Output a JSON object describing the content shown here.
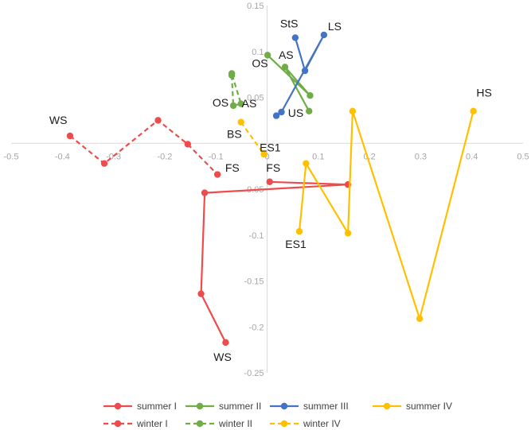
{
  "chart_data": {
    "type": "scatter",
    "title": "",
    "xlabel": "",
    "ylabel": "",
    "xlim": [
      -0.5,
      0.5
    ],
    "ylim": [
      -0.25,
      0.15
    ],
    "x_ticks": [
      -0.5,
      -0.4,
      -0.3,
      -0.2,
      -0.1,
      0,
      0.1,
      0.2,
      0.3,
      0.4,
      0.5
    ],
    "y_ticks": [
      -0.25,
      -0.2,
      -0.15,
      -0.1,
      -0.05,
      0.05,
      0.1,
      0.15
    ],
    "x_tick_labels": [
      "-0.5",
      "-0.4",
      "-0.3",
      "-0.2",
      "-0.1",
      "0",
      "0.1",
      "0.2",
      "0.3",
      "0.4",
      "0.5"
    ],
    "y_tick_labels": [
      "-0.25",
      "-0.2",
      "-0.15",
      "-0.1",
      "-0.05",
      "0.05",
      "0.1",
      "0.15"
    ],
    "grid": false,
    "legend_position": "bottom",
    "series": [
      {
        "name": "summer I",
        "color": "#ee4c4c",
        "dash": false,
        "points": [
          [
            0.005,
            -0.042
          ],
          [
            0.158,
            -0.045
          ],
          [
            -0.122,
            -0.054
          ],
          [
            -0.129,
            -0.164
          ],
          [
            -0.081,
            -0.217
          ]
        ]
      },
      {
        "name": "summer II",
        "color": "#70ad47",
        "dash": false,
        "points": [
          [
            0.001,
            0.096
          ],
          [
            0.084,
            0.052
          ],
          [
            0.035,
            0.083
          ],
          [
            0.082,
            0.035
          ]
        ]
      },
      {
        "name": "summer III",
        "color": "#4472c4",
        "dash": false,
        "points": [
          [
            0.055,
            0.115
          ],
          [
            0.074,
            0.079
          ],
          [
            0.111,
            0.118
          ],
          [
            0.028,
            0.034
          ],
          [
            0.018,
            0.03
          ]
        ]
      },
      {
        "name": "summer IV",
        "color": "#ffc000",
        "dash": false,
        "points": [
          [
            0.063,
            -0.096
          ],
          [
            0.076,
            -0.022
          ],
          [
            0.158,
            -0.098
          ],
          [
            0.167,
            0.035
          ],
          [
            0.298,
            -0.191
          ],
          [
            0.403,
            0.035
          ]
        ]
      },
      {
        "name": "winter I",
        "color": "#ee4c4c",
        "dash": true,
        "points": [
          [
            -0.385,
            0.008
          ],
          [
            -0.318,
            -0.022
          ],
          [
            -0.213,
            0.025
          ],
          [
            -0.155,
            -0.001
          ],
          [
            -0.097,
            -0.034
          ]
        ]
      },
      {
        "name": "winter II",
        "color": "#70ad47",
        "dash": true,
        "points": [
          [
            -0.069,
            0.074
          ],
          [
            -0.066,
            0.041
          ],
          [
            -0.051,
            0.043
          ],
          [
            -0.069,
            0.076
          ]
        ]
      },
      {
        "name": "winter IV",
        "color": "#ffc000",
        "dash": true,
        "points": [
          [
            -0.051,
            0.023
          ],
          [
            -0.006,
            -0.012
          ]
        ]
      }
    ],
    "annotations": [
      {
        "text": "WS",
        "x": -0.408,
        "y": 0.021
      },
      {
        "text": "FS",
        "x": -0.068,
        "y": -0.031
      },
      {
        "text": "WS",
        "x": -0.087,
        "y": -0.237
      },
      {
        "text": "FS",
        "x": 0.012,
        "y": -0.031
      },
      {
        "text": "OS",
        "x": -0.014,
        "y": 0.083
      },
      {
        "text": "OS",
        "x": -0.091,
        "y": 0.04
      },
      {
        "text": "AS",
        "x": -0.035,
        "y": 0.039
      },
      {
        "text": "AS",
        "x": 0.037,
        "y": 0.092
      },
      {
        "text": "StS",
        "x": 0.043,
        "y": 0.126
      },
      {
        "text": "LS",
        "x": 0.132,
        "y": 0.123
      },
      {
        "text": "US",
        "x": 0.056,
        "y": 0.029
      },
      {
        "text": "BS",
        "x": -0.064,
        "y": 0.006
      },
      {
        "text": "ES1",
        "x": 0.006,
        "y": -0.009
      },
      {
        "text": "ES1",
        "x": 0.056,
        "y": -0.114
      },
      {
        "text": "HS",
        "x": 0.424,
        "y": 0.051
      }
    ]
  }
}
